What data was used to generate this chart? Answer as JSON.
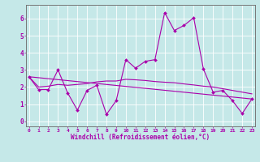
{
  "xlabel": "Windchill (Refroidissement éolien,°C)",
  "bg_color": "#c5e8e8",
  "line_color": "#aa00aa",
  "grid_color": "#b0d8d8",
  "spine_color": "#888888",
  "x_ticks": [
    0,
    1,
    2,
    3,
    4,
    5,
    6,
    7,
    8,
    9,
    10,
    11,
    12,
    13,
    14,
    15,
    16,
    17,
    18,
    19,
    20,
    21,
    22,
    23
  ],
  "y_ticks": [
    0,
    1,
    2,
    3,
    4,
    5,
    6
  ],
  "xlim": [
    -0.3,
    23.3
  ],
  "ylim": [
    -0.3,
    6.8
  ],
  "line1_x": [
    0,
    1,
    2,
    3,
    4,
    5,
    6,
    7,
    8,
    9,
    10,
    11,
    12,
    13,
    14,
    15,
    16,
    17,
    18,
    19,
    20,
    21,
    22,
    23
  ],
  "line1_y": [
    2.6,
    1.85,
    1.85,
    3.0,
    1.65,
    0.65,
    1.8,
    2.1,
    0.4,
    1.2,
    3.6,
    3.1,
    3.5,
    3.6,
    6.35,
    5.3,
    5.6,
    6.05,
    3.05,
    1.7,
    1.8,
    1.2,
    0.45,
    1.3
  ],
  "line2_x": [
    0,
    1,
    2,
    3,
    4,
    5,
    6,
    7,
    8,
    9,
    10,
    11,
    12,
    13,
    14,
    15,
    16,
    17,
    18,
    19,
    20,
    21,
    22,
    23
  ],
  "line2_y": [
    2.6,
    2.0,
    2.05,
    2.15,
    2.1,
    2.15,
    2.2,
    2.3,
    2.35,
    2.35,
    2.45,
    2.42,
    2.38,
    2.32,
    2.28,
    2.25,
    2.18,
    2.12,
    2.05,
    2.0,
    1.9,
    1.8,
    1.7,
    1.6
  ],
  "line3_x": [
    0,
    23
  ],
  "line3_y": [
    2.6,
    1.3
  ]
}
